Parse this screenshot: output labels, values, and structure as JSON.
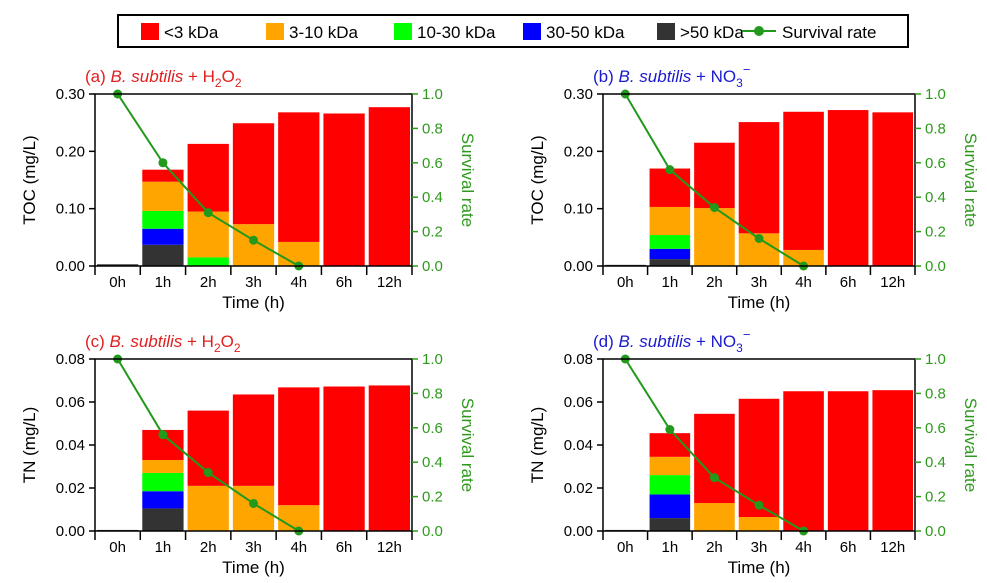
{
  "legend": {
    "items": [
      {
        "label": "<3 kDa",
        "color": "#ff0000",
        "kind": "box"
      },
      {
        "label": "3-10 kDa",
        "color": "#ffa500",
        "kind": "box"
      },
      {
        "label": "10-30 kDa",
        "color": "#00ff00",
        "kind": "box"
      },
      {
        "label": "30-50 kDa",
        "color": "#0000ff",
        "kind": "box"
      },
      {
        "label": ">50 kDa",
        "color": "#333333",
        "kind": "box"
      },
      {
        "label": "Survival rate",
        "color": "#22991c",
        "kind": "line"
      }
    ]
  },
  "colors": {
    "lt3": "#ff0000",
    "k3_10": "#ffa500",
    "k10_30": "#00ff00",
    "k30_50": "#0000ff",
    "gt50": "#333333",
    "survival": "#22991c",
    "title_red": "#e02020",
    "title_blue": "#1a1ad0",
    "right_axis": "#2e9a1c"
  },
  "chart_data": [
    {
      "type": "bar",
      "stacked": true,
      "title": {
        "prefix": "(a) ",
        "species": "B. subtilis",
        "connector": " + ",
        "agent": "H2O2",
        "agent_base": "H",
        "agent_sub1": "2",
        "agent_mid": "O",
        "agent_sub2": "2",
        "color": "red"
      },
      "categories": [
        "0h",
        "1h",
        "2h",
        "3h",
        "4h",
        "6h",
        "12h"
      ],
      "xlabel": "Time (h)",
      "ylabel": "TOC (mg/L)",
      "ylim": [
        0,
        0.3
      ],
      "yticks": [
        "0.00",
        "0.10",
        "0.20",
        "0.30"
      ],
      "yticks_values": [
        0,
        0.1,
        0.2,
        0.3
      ],
      "y2label": "Survival rate",
      "y2lim": [
        0,
        1.0
      ],
      "y2ticks": [
        "0.0",
        "0.2",
        "0.4",
        "0.6",
        "0.8",
        "1.0"
      ],
      "series": [
        {
          "name": ">50 kDa",
          "values": [
            0.003,
            0.037,
            0,
            0,
            0,
            0,
            0
          ]
        },
        {
          "name": "30-50 kDa",
          "values": [
            0,
            0.028,
            0,
            0,
            0,
            0,
            0
          ]
        },
        {
          "name": "10-30 kDa",
          "values": [
            0,
            0.031,
            0.015,
            0,
            0,
            0,
            0
          ]
        },
        {
          "name": "3-10 kDa",
          "values": [
            0,
            0.051,
            0.08,
            0.073,
            0.042,
            0,
            0
          ]
        },
        {
          "name": "<3 kDa",
          "values": [
            0,
            0.021,
            0.118,
            0.176,
            0.226,
            0.266,
            0.277
          ]
        }
      ],
      "survival": [
        1.0,
        0.6,
        0.31,
        0.15,
        0.0
      ]
    },
    {
      "type": "bar",
      "stacked": true,
      "title": {
        "prefix": "(b) ",
        "species": "B. subtilis",
        "connector": " + ",
        "agent": "NO3−",
        "agent_base": "NO",
        "agent_sub1": "3",
        "agent_sup": "−",
        "color": "blue"
      },
      "categories": [
        "0h",
        "1h",
        "2h",
        "3h",
        "4h",
        "6h",
        "12h"
      ],
      "xlabel": "Time (h)",
      "ylabel": "TOC (mg/L)",
      "ylim": [
        0,
        0.3
      ],
      "yticks": [
        "0.00",
        "0.10",
        "0.20",
        "0.30"
      ],
      "yticks_values": [
        0,
        0.1,
        0.2,
        0.3
      ],
      "y2label": "Survival rate",
      "y2lim": [
        0,
        1.0
      ],
      "y2ticks": [
        "0.0",
        "0.2",
        "0.4",
        "0.6",
        "0.8",
        "1.0"
      ],
      "series": [
        {
          "name": ">50 kDa",
          "values": [
            0.002,
            0.012,
            0,
            0,
            0,
            0,
            0
          ]
        },
        {
          "name": "30-50 kDa",
          "values": [
            0,
            0.018,
            0,
            0,
            0,
            0,
            0
          ]
        },
        {
          "name": "10-30 kDa",
          "values": [
            0,
            0.024,
            0,
            0,
            0,
            0,
            0
          ]
        },
        {
          "name": "3-10 kDa",
          "values": [
            0,
            0.049,
            0.101,
            0.057,
            0.028,
            0,
            0
          ]
        },
        {
          "name": "<3 kDa",
          "values": [
            0,
            0.067,
            0.114,
            0.194,
            0.241,
            0.272,
            0.268
          ]
        }
      ],
      "survival": [
        1.0,
        0.56,
        0.34,
        0.16,
        0.0
      ]
    },
    {
      "type": "bar",
      "stacked": true,
      "title": {
        "prefix": "(c) ",
        "species": "B. subtilis",
        "connector": " + ",
        "agent": "H2O2",
        "agent_base": "H",
        "agent_sub1": "2",
        "agent_mid": "O",
        "agent_sub2": "2",
        "color": "red"
      },
      "categories": [
        "0h",
        "1h",
        "2h",
        "3h",
        "4h",
        "6h",
        "12h"
      ],
      "xlabel": "Time (h)",
      "ylabel": "TN (mg/L)",
      "ylim": [
        0,
        0.08
      ],
      "yticks": [
        "0.00",
        "0.02",
        "0.04",
        "0.06",
        "0.08"
      ],
      "yticks_values": [
        0,
        0.02,
        0.04,
        0.06,
        0.08
      ],
      "y2label": "Survival rate",
      "y2lim": [
        0,
        1.0
      ],
      "y2ticks": [
        "0.0",
        "0.2",
        "0.4",
        "0.6",
        "0.8",
        "1.0"
      ],
      "series": [
        {
          "name": ">50 kDa",
          "values": [
            0.0005,
            0.0105,
            0,
            0,
            0,
            0,
            0
          ]
        },
        {
          "name": "30-50 kDa",
          "values": [
            0,
            0.008,
            0,
            0,
            0,
            0,
            0
          ]
        },
        {
          "name": "10-30 kDa",
          "values": [
            0,
            0.0085,
            0,
            0,
            0,
            0,
            0
          ]
        },
        {
          "name": "3-10 kDa",
          "values": [
            0,
            0.006,
            0.021,
            0.021,
            0.012,
            0,
            0
          ]
        },
        {
          "name": "<3 kDa",
          "values": [
            0,
            0.014,
            0.035,
            0.0425,
            0.0548,
            0.0672,
            0.0677
          ]
        }
      ],
      "survival": [
        1.0,
        0.56,
        0.34,
        0.16,
        0.0
      ]
    },
    {
      "type": "bar",
      "stacked": true,
      "title": {
        "prefix": "(d) ",
        "species": "B. subtilis",
        "connector": " + ",
        "agent": "NO3−",
        "agent_base": "NO",
        "agent_sub1": "3",
        "agent_sup": "−",
        "color": "blue"
      },
      "categories": [
        "0h",
        "1h",
        "2h",
        "3h",
        "4h",
        "6h",
        "12h"
      ],
      "xlabel": "Time (h)",
      "ylabel": "TN (mg/L)",
      "ylim": [
        0,
        0.08
      ],
      "yticks": [
        "0.00",
        "0.02",
        "0.04",
        "0.06",
        "0.08"
      ],
      "yticks_values": [
        0,
        0.02,
        0.04,
        0.06,
        0.08
      ],
      "y2label": "Survival rate",
      "y2lim": [
        0,
        1.0
      ],
      "y2ticks": [
        "0.0",
        "0.2",
        "0.4",
        "0.6",
        "0.8",
        "1.0"
      ],
      "series": [
        {
          "name": ">50 kDa",
          "values": [
            0.0005,
            0.006,
            0,
            0,
            0,
            0,
            0
          ]
        },
        {
          "name": "30-50 kDa",
          "values": [
            0,
            0.011,
            0,
            0,
            0,
            0,
            0
          ]
        },
        {
          "name": "10-30 kDa",
          "values": [
            0,
            0.009,
            0,
            0,
            0,
            0,
            0
          ]
        },
        {
          "name": "3-10 kDa",
          "values": [
            0,
            0.0085,
            0.013,
            0.0065,
            0,
            0,
            0
          ]
        },
        {
          "name": "<3 kDa",
          "values": [
            0,
            0.011,
            0.0415,
            0.055,
            0.065,
            0.065,
            0.0655
          ]
        }
      ],
      "survival": [
        1.0,
        0.59,
        0.31,
        0.15,
        0.0
      ]
    }
  ]
}
